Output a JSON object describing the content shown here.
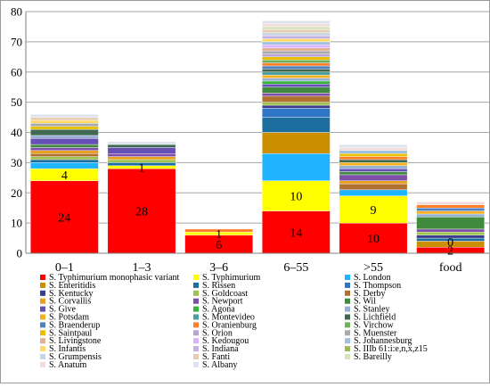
{
  "chart_data": {
    "type": "bar",
    "stacked": true,
    "categories": [
      "0–1",
      "1–3",
      "3–6",
      "6–55",
      ">55",
      "food"
    ],
    "ylim": [
      0,
      80
    ],
    "yticks": [
      0,
      10,
      20,
      30,
      40,
      50,
      60,
      70,
      80
    ],
    "grid": true,
    "legend_position": "bottom",
    "series": [
      {
        "name": "S. Typhimurium monophasic variant",
        "color": "#ff0000",
        "values": [
          24,
          28,
          6,
          14,
          10,
          2
        ]
      },
      {
        "name": "S. Typhimurium",
        "color": "#ffff00",
        "values": [
          4,
          1,
          1,
          10,
          9,
          0
        ]
      },
      {
        "name": "S. London",
        "color": "#1fb4ff",
        "values": [
          2,
          0,
          0,
          9,
          2,
          0
        ]
      },
      {
        "name": "S. Enteritidis",
        "color": "#cc8f00",
        "values": [
          0,
          0,
          0,
          7,
          0,
          2
        ]
      },
      {
        "name": "S. Rissen",
        "color": "#1b6e9e",
        "values": [
          1,
          1,
          0,
          5,
          0,
          1
        ]
      },
      {
        "name": "S. Thompson",
        "color": "#2e75c6",
        "values": [
          0,
          0,
          0,
          3,
          0,
          0
        ]
      },
      {
        "name": "S. Kentucky",
        "color": "#3c3c8c",
        "values": [
          0,
          0,
          0,
          1,
          0,
          1
        ]
      },
      {
        "name": "S. Goldcoast",
        "color": "#9ec24f",
        "values": [
          1,
          1,
          0,
          1,
          0,
          1
        ]
      },
      {
        "name": "S. Derby",
        "color": "#b07030",
        "values": [
          1,
          0,
          0,
          2,
          2,
          0
        ]
      },
      {
        "name": "S. Corvallis",
        "color": "#e8a020",
        "values": [
          1,
          1,
          0,
          0,
          1,
          0
        ]
      },
      {
        "name": "S. Newport",
        "color": "#7f50a8",
        "values": [
          1,
          1,
          0,
          1,
          2,
          1
        ]
      },
      {
        "name": "S. Wil",
        "color": "#3f8a3c",
        "values": [
          1,
          0,
          0,
          2,
          1,
          4
        ]
      },
      {
        "name": "S. Give",
        "color": "#6650b4",
        "values": [
          2,
          2,
          0,
          1,
          1,
          0
        ]
      },
      {
        "name": "S. Agona",
        "color": "#37b537",
        "values": [
          0,
          0,
          0,
          1,
          0,
          0
        ]
      },
      {
        "name": "S. Stanley",
        "color": "#97b0d6",
        "values": [
          1,
          0,
          0,
          1,
          1,
          1
        ]
      },
      {
        "name": "S. Potsdam",
        "color": "#f5b01f",
        "values": [
          0,
          0,
          0,
          1,
          1,
          1
        ]
      },
      {
        "name": "S. Montevideo",
        "color": "#4aa0a0",
        "values": [
          0,
          0,
          0,
          1,
          0,
          0
        ]
      },
      {
        "name": "S. Lichfield",
        "color": "#406850",
        "values": [
          2,
          1,
          0,
          1,
          1,
          0
        ]
      },
      {
        "name": "S. Braenderup",
        "color": "#5080c0",
        "values": [
          0,
          0,
          0,
          1,
          0,
          1
        ]
      },
      {
        "name": "S. Oranienburg",
        "color": "#ff7f2a",
        "values": [
          0,
          0,
          1,
          1,
          1,
          1
        ]
      },
      {
        "name": "S. Virchow",
        "color": "#6fae5a",
        "values": [
          0,
          0,
          0,
          1,
          0,
          0
        ]
      },
      {
        "name": "S. Saintpaul",
        "color": "#e8c000",
        "values": [
          1,
          0,
          0,
          1,
          1,
          0
        ]
      },
      {
        "name": "S. Orion",
        "color": "#b7a4d1",
        "values": [
          0,
          0,
          0,
          1,
          0,
          0
        ]
      },
      {
        "name": "S. Muenster",
        "color": "#a9a9a9",
        "values": [
          1,
          0,
          0,
          1,
          0,
          0
        ]
      },
      {
        "name": "S. Livingstone",
        "color": "#e0b090",
        "values": [
          0,
          0,
          0,
          1,
          0,
          0
        ]
      },
      {
        "name": "S. Kedougou",
        "color": "#d9b3ff",
        "values": [
          0,
          0,
          0,
          1,
          0,
          0
        ]
      },
      {
        "name": "S. Johannesburg",
        "color": "#9fc0e0",
        "values": [
          0,
          0,
          0,
          1,
          1,
          0
        ]
      },
      {
        "name": "S. Infantis",
        "color": "#ffd966",
        "values": [
          1,
          0,
          0,
          1,
          0,
          0
        ]
      },
      {
        "name": "S. Indiana",
        "color": "#c6b0e0",
        "values": [
          0,
          0,
          0,
          1,
          0,
          0
        ]
      },
      {
        "name": "S. IIIb 61:i:e,n,x,z15",
        "color": "#9bbb59",
        "values": [
          0,
          0,
          0,
          0,
          0,
          0
        ]
      },
      {
        "name": "S. Grumpensis",
        "color": "#c8d4e8",
        "values": [
          0,
          0,
          0,
          1,
          0,
          0
        ]
      },
      {
        "name": "S. Fanti",
        "color": "#e6ccb3",
        "values": [
          1,
          0,
          0,
          1,
          0,
          0
        ]
      },
      {
        "name": "S. Bareilly",
        "color": "#d8e4bc",
        "values": [
          0,
          0,
          0,
          1,
          0,
          0
        ]
      },
      {
        "name": "S. Anatum",
        "color": "#f2dcdb",
        "values": [
          0,
          0,
          0,
          1,
          1,
          1
        ]
      },
      {
        "name": "S. Albany",
        "color": "#dde4ee",
        "values": [
          1,
          1,
          0,
          1,
          1,
          0
        ]
      }
    ],
    "data_labels": [
      {
        "category": "0–1",
        "series": "S. Typhimurium monophasic variant",
        "text": "24"
      },
      {
        "category": "0–1",
        "series": "S. Typhimurium",
        "text": "4"
      },
      {
        "category": "1–3",
        "series": "S. Typhimurium monophasic variant",
        "text": "28"
      },
      {
        "category": "1–3",
        "series": "S. Typhimurium",
        "text": "1"
      },
      {
        "category": "3–6",
        "series": "S. Typhimurium monophasic variant",
        "text": "6"
      },
      {
        "category": "3–6",
        "series": "S. Typhimurium",
        "text": "1"
      },
      {
        "category": "6–55",
        "series": "S. Typhimurium monophasic variant",
        "text": "14"
      },
      {
        "category": "6–55",
        "series": "S. Typhimurium",
        "text": "10"
      },
      {
        "category": ">55",
        "series": "S. Typhimurium monophasic variant",
        "text": "10"
      },
      {
        "category": ">55",
        "series": "S. Typhimurium",
        "text": "9"
      },
      {
        "category": "food",
        "series": "S. Typhimurium monophasic variant",
        "text": "2"
      },
      {
        "category": "food",
        "series": "S. Typhimurium",
        "text": "0"
      }
    ]
  }
}
